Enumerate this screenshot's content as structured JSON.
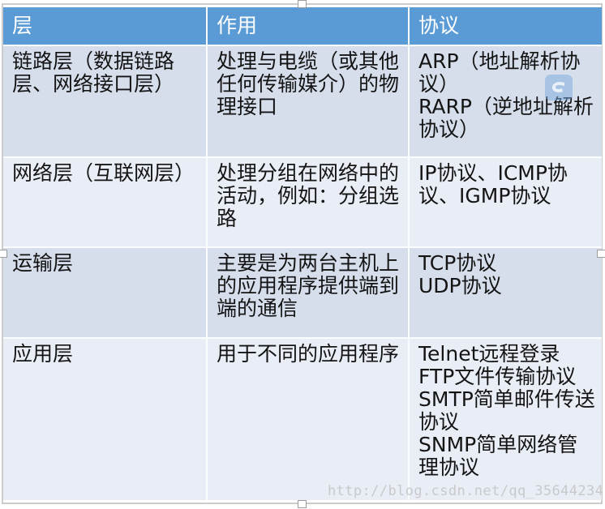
{
  "table": {
    "columns": [
      {
        "label": "层"
      },
      {
        "label": "作用"
      },
      {
        "label": "协议"
      }
    ],
    "rows": [
      {
        "layer": "链路层（数据链路层、网络接口层）",
        "function": "处理与电缆（或其他任何传输媒介）的物理接口",
        "protocols": [
          "ARP（地址解析协议）",
          "RARP（逆地址解析协议）"
        ]
      },
      {
        "layer": "网络层（互联网层）",
        "function": "处理分组在网络中的活动，例如：分组选路",
        "protocols": [
          "IP协议、ICMP协议、IGMP协议"
        ]
      },
      {
        "layer": "运输层",
        "function": "主要是为两台主机上的应用程序提供端到端的通信",
        "protocols": [
          "TCP协议",
          "UDP协议"
        ]
      },
      {
        "layer": "应用层",
        "function": "用于不同的应用程序",
        "protocols": [
          "Telnet远程登录",
          "FTP文件传输协议",
          "SMTP简单邮件传送协议",
          "SNMP简单网络管理协议"
        ]
      }
    ]
  },
  "watermark": {
    "url": "http://blog.csdn.net/qq_35644234",
    "logo": "csdn-logo"
  },
  "colors": {
    "header_bg": "#5B9BD5",
    "header_text": "#FFFFFF",
    "row_band_dark": "#D6DDEB",
    "row_band_light": "#E9EDF5",
    "body_text": "#141414",
    "watermark_text": "#C3C3C3"
  }
}
